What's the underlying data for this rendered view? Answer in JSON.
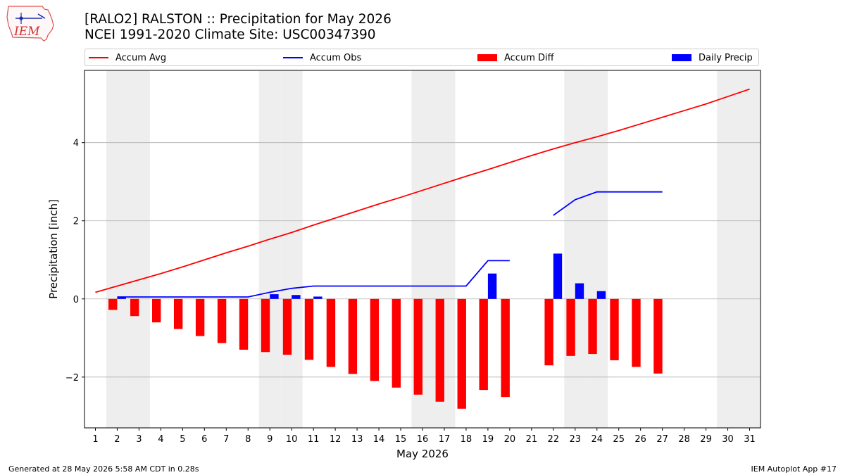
{
  "logo": {
    "text": "IEM"
  },
  "header": {
    "title_line1": "[RALO2] RALSTON :: Precipitation for May 2026",
    "title_line2": "NCEI 1991-2020 Climate Site: USC00347390"
  },
  "legend": {
    "accum_avg": "Accum Avg",
    "accum_obs": "Accum Obs",
    "accum_diff": "Accum Diff",
    "daily_precip": "Daily Precip"
  },
  "colors": {
    "avg": "#ff0000",
    "obs": "#0000ff",
    "diff": "#ff0000",
    "daily": "#0000ff",
    "weekend": "#eeeeee",
    "grid": "#b0b0b0"
  },
  "footer": {
    "left": "Generated at 28 May 2026 5:58 AM CDT in 0.28s",
    "right": "IEM Autoplot App #17"
  },
  "chart_data": {
    "type": "bar",
    "xlabel": "May 2026",
    "ylabel": "Precipitation [inch]",
    "xlim": [
      0.5,
      31.5
    ],
    "ylim": [
      -3.3,
      5.85
    ],
    "yticks": [
      -2,
      0,
      2,
      4
    ],
    "x": [
      1,
      2,
      3,
      4,
      5,
      6,
      7,
      8,
      9,
      10,
      11,
      12,
      13,
      14,
      15,
      16,
      17,
      18,
      19,
      20,
      21,
      22,
      23,
      24,
      25,
      26,
      27,
      28,
      29,
      30,
      31
    ],
    "weekend_days": [
      2,
      3,
      9,
      10,
      16,
      17,
      23,
      24,
      30,
      31
    ],
    "grid": "horizontal",
    "legend_position": "top",
    "series": [
      {
        "name": "Accum Avg",
        "kind": "line",
        "values": [
          0.17,
          0.33,
          0.49,
          0.65,
          0.82,
          1.0,
          1.18,
          1.35,
          1.53,
          1.7,
          1.89,
          2.07,
          2.25,
          2.43,
          2.6,
          2.78,
          2.96,
          3.14,
          3.31,
          3.49,
          3.67,
          3.84,
          4.0,
          4.15,
          4.31,
          4.48,
          4.65,
          4.82,
          4.99,
          5.18,
          5.37
        ]
      },
      {
        "name": "Accum Obs",
        "kind": "line",
        "values": [
          null,
          0.05,
          0.05,
          0.05,
          0.05,
          0.05,
          0.05,
          0.05,
          0.17,
          0.27,
          0.33,
          0.33,
          0.33,
          0.33,
          0.33,
          0.33,
          0.33,
          0.33,
          0.98,
          0.98,
          null,
          2.14,
          2.54,
          2.74,
          2.74,
          2.74,
          2.74,
          null,
          null,
          null,
          null
        ]
      },
      {
        "name": "Accum Diff",
        "kind": "bar",
        "values": [
          null,
          -0.28,
          -0.44,
          -0.6,
          -0.77,
          -0.95,
          -1.13,
          -1.3,
          -1.36,
          -1.43,
          -1.56,
          -1.74,
          -1.92,
          -2.1,
          -2.27,
          -2.45,
          -2.63,
          -2.81,
          -2.33,
          -2.51,
          null,
          -1.7,
          -1.46,
          -1.41,
          -1.57,
          -1.74,
          -1.91,
          null,
          null,
          null,
          null
        ]
      },
      {
        "name": "Daily Precip",
        "kind": "bar",
        "values": [
          null,
          0.05,
          0,
          0,
          0,
          0,
          0,
          0,
          0.12,
          0.1,
          0.06,
          0,
          0,
          0,
          0,
          0,
          0,
          0,
          0.65,
          0,
          null,
          1.16,
          0.4,
          0.2,
          0,
          0,
          0,
          null,
          null,
          null,
          null
        ]
      }
    ]
  }
}
